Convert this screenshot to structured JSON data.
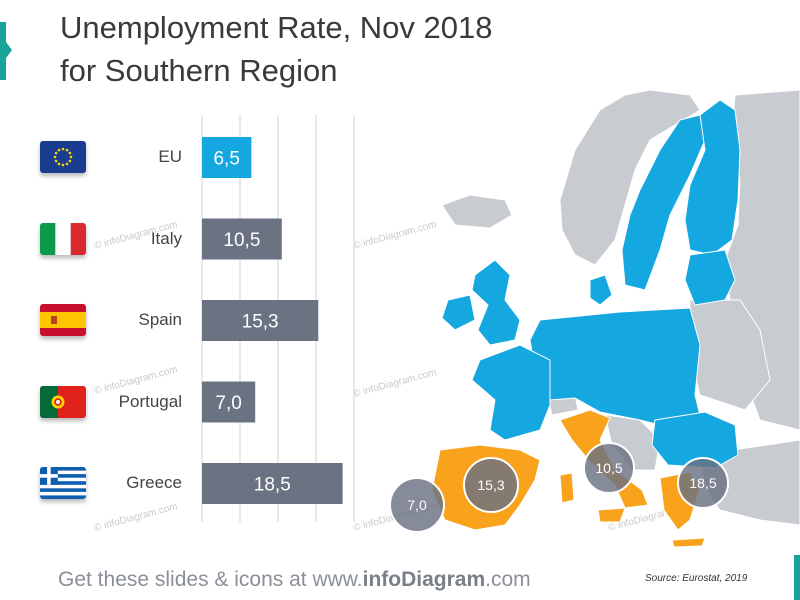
{
  "title_line1": "Unemployment Rate, Nov 2018",
  "title_line2": "for Southern Region",
  "chart_data": {
    "type": "bar",
    "orientation": "horizontal",
    "categories": [
      "EU",
      "Italy",
      "Spain",
      "Portugal",
      "Greece"
    ],
    "values": [
      6.5,
      10.5,
      15.3,
      7.0,
      18.5
    ],
    "value_labels": [
      "6,5",
      "10,5",
      "15,3",
      "7,0",
      "18,5"
    ],
    "xlim": [
      0,
      20
    ],
    "grid": true,
    "colors": {
      "eu": "#14a7e0",
      "country": "#6b7282"
    }
  },
  "map": {
    "bubbles": [
      {
        "country": "Portugal",
        "label": "7,0"
      },
      {
        "country": "Spain",
        "label": "15,3"
      },
      {
        "country": "Italy",
        "label": "10,5"
      },
      {
        "country": "Greece",
        "label": "18,5"
      }
    ],
    "colors": {
      "eu_member": "#14a7e0",
      "highlight": "#f8a31b",
      "non_eu": "#c8cbd0",
      "bubble": "#6b7282"
    }
  },
  "footer": {
    "prefix": "Get these slides & icons at www.",
    "brand": "infoDiagram",
    "suffix": ".com"
  },
  "source": "Source: Eurostat, 2019",
  "watermark": "© infoDiagram.com",
  "flags": [
    "eu-flag-icon",
    "italy-flag-icon",
    "spain-flag-icon",
    "portugal-flag-icon",
    "greece-flag-icon"
  ]
}
